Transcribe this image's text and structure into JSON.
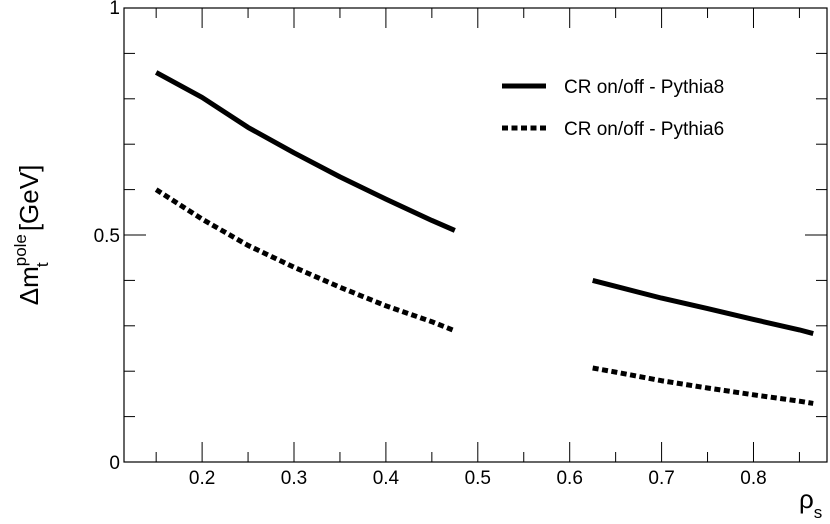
{
  "chart_data": {
    "type": "line",
    "title": "",
    "xlabel": {
      "symbol": "ρ",
      "subscript": "s"
    },
    "ylabel": {
      "prefix": "Δm",
      "superscript": "pole",
      "subscript": "t",
      "suffix": " [GeV]"
    },
    "xlim": [
      0.115,
      0.88
    ],
    "ylim": [
      0,
      1
    ],
    "x_ticks": [
      {
        "value": 0.2,
        "label": "0.2"
      },
      {
        "value": 0.3,
        "label": "0.3"
      },
      {
        "value": 0.4,
        "label": "0.4"
      },
      {
        "value": 0.5,
        "label": "0.5"
      },
      {
        "value": 0.6,
        "label": "0.6"
      },
      {
        "value": 0.7,
        "label": "0.7"
      },
      {
        "value": 0.8,
        "label": "0.8"
      }
    ],
    "y_ticks": [
      {
        "value": 0,
        "label": "0"
      },
      {
        "value": 0.5,
        "label": "0.5"
      },
      {
        "value": 1,
        "label": "1"
      }
    ],
    "x_minor_step": 0.05,
    "y_minor_step": 0.1,
    "grid": false,
    "legend_position": "top-right",
    "series": [
      {
        "name": "CR on/off - Pythia8",
        "style": "solid",
        "color": "#000000",
        "segments": [
          {
            "x": [
              0.15,
              0.2,
              0.25,
              0.3,
              0.35,
              0.4,
              0.45,
              0.475
            ],
            "y": [
              0.858,
              0.803,
              0.737,
              0.681,
              0.628,
              0.579,
              0.532,
              0.51
            ]
          },
          {
            "x": [
              0.625,
              0.65,
              0.7,
              0.75,
              0.8,
              0.85,
              0.865
            ],
            "y": [
              0.4,
              0.387,
              0.361,
              0.338,
              0.314,
              0.291,
              0.283
            ]
          }
        ]
      },
      {
        "name": "CR on/off - Pythia6",
        "style": "dashed",
        "color": "#000000",
        "segments": [
          {
            "x": [
              0.15,
              0.2,
              0.25,
              0.3,
              0.35,
              0.4,
              0.45,
              0.475
            ],
            "y": [
              0.6,
              0.535,
              0.477,
              0.429,
              0.385,
              0.344,
              0.309,
              0.289
            ]
          },
          {
            "x": [
              0.625,
              0.65,
              0.7,
              0.75,
              0.8,
              0.85,
              0.865
            ],
            "y": [
              0.207,
              0.198,
              0.179,
              0.163,
              0.148,
              0.134,
              0.129
            ]
          }
        ]
      }
    ]
  }
}
